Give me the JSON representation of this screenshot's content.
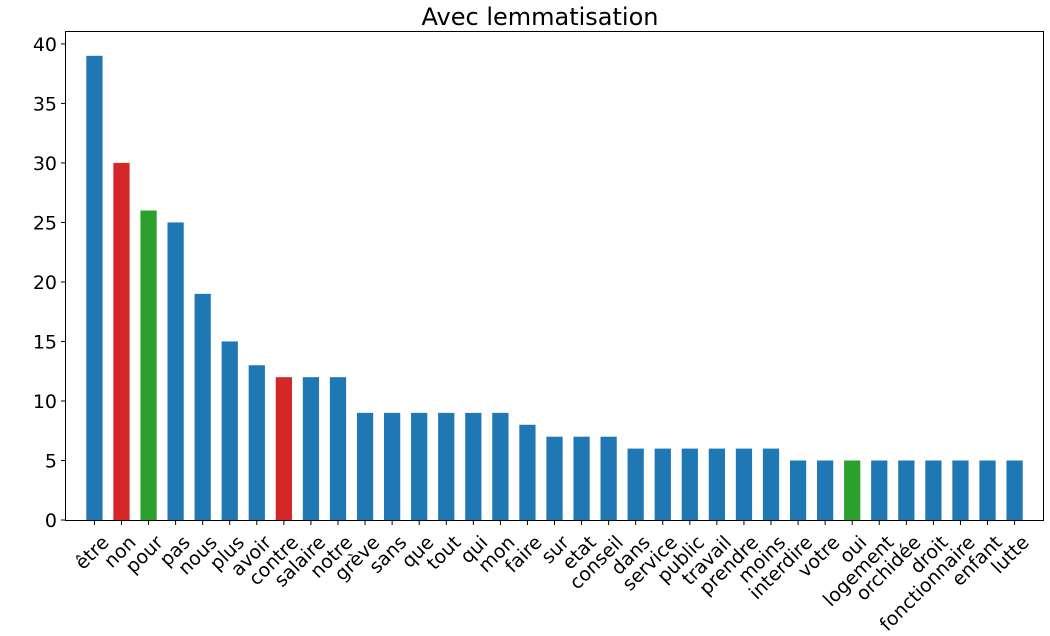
{
  "chart_data": {
    "type": "bar",
    "title": "Avec lemmatisation",
    "xlabel": "",
    "ylabel": "",
    "ylim": [
      0,
      41
    ],
    "yticks": [
      0,
      5,
      10,
      15,
      20,
      25,
      30,
      35,
      40
    ],
    "grid": false,
    "legend": "none",
    "categories": [
      "être",
      "non",
      "pour",
      "pas",
      "nous",
      "plus",
      "avoir",
      "contre",
      "salaire",
      "notre",
      "grève",
      "sans",
      "que",
      "tout",
      "qui",
      "mon",
      "faire",
      "sur",
      "etat",
      "conseil",
      "dans",
      "service",
      "public",
      "travail",
      "prendre",
      "moins",
      "interdire",
      "votre",
      "oui",
      "logement",
      "orchidée",
      "droit",
      "fonctionnaire",
      "enfant",
      "lutte"
    ],
    "values": [
      39,
      30,
      26,
      25,
      19,
      15,
      13,
      12,
      12,
      12,
      9,
      9,
      9,
      9,
      9,
      9,
      8,
      7,
      7,
      7,
      6,
      6,
      6,
      6,
      6,
      6,
      5,
      5,
      5,
      5,
      5,
      5,
      5,
      5,
      5
    ],
    "bar_colors": [
      "#1f77b4",
      "#d62728",
      "#2ca02c",
      "#1f77b4",
      "#1f77b4",
      "#1f77b4",
      "#1f77b4",
      "#d62728",
      "#1f77b4",
      "#1f77b4",
      "#1f77b4",
      "#1f77b4",
      "#1f77b4",
      "#1f77b4",
      "#1f77b4",
      "#1f77b4",
      "#1f77b4",
      "#1f77b4",
      "#1f77b4",
      "#1f77b4",
      "#1f77b4",
      "#1f77b4",
      "#1f77b4",
      "#1f77b4",
      "#1f77b4",
      "#1f77b4",
      "#1f77b4",
      "#1f77b4",
      "#2ca02c",
      "#1f77b4",
      "#1f77b4",
      "#1f77b4",
      "#1f77b4",
      "#1f77b4",
      "#1f77b4"
    ]
  }
}
